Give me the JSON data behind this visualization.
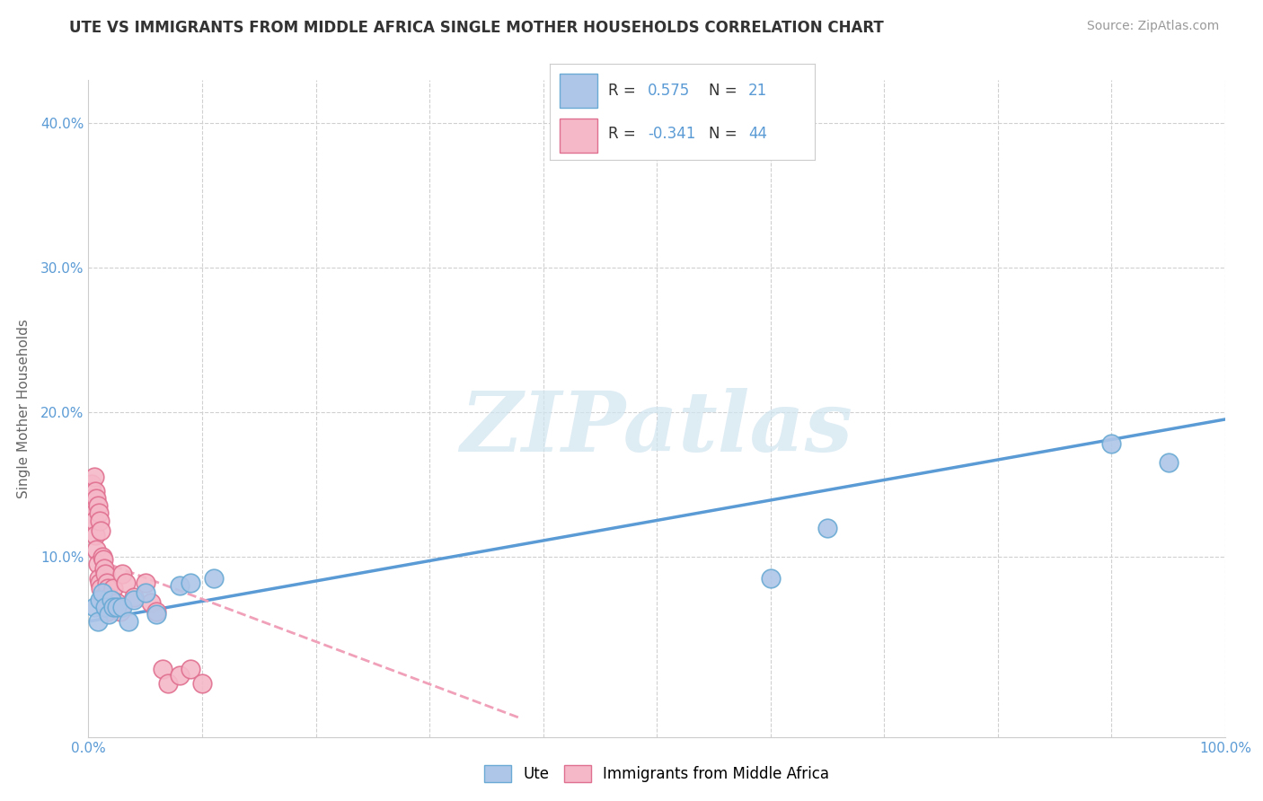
{
  "title": "UTE VS IMMIGRANTS FROM MIDDLE AFRICA SINGLE MOTHER HOUSEHOLDS CORRELATION CHART",
  "source": "Source: ZipAtlas.com",
  "ylabel": "Single Mother Households",
  "xlim": [
    0,
    1.0
  ],
  "ylim": [
    -0.025,
    0.43
  ],
  "blue_color": "#aec6e8",
  "blue_edge_color": "#6aaad4",
  "pink_color": "#f5b8c8",
  "pink_edge_color": "#e07090",
  "blue_line_color": "#5b9bd5",
  "pink_line_color": "#f0a0b8",
  "watermark_text": "ZIPatlas",
  "watermark_color": "#d0e4f0",
  "legend_r1": "0.575",
  "legend_n1": "21",
  "legend_r2": "-0.341",
  "legend_n2": "44",
  "blue_points_x": [
    0.005,
    0.008,
    0.01,
    0.012,
    0.015,
    0.018,
    0.02,
    0.022,
    0.025,
    0.03,
    0.035,
    0.04,
    0.05,
    0.06,
    0.08,
    0.09,
    0.11,
    0.6,
    0.65,
    0.9,
    0.95
  ],
  "blue_points_y": [
    0.065,
    0.055,
    0.07,
    0.075,
    0.065,
    0.06,
    0.07,
    0.065,
    0.065,
    0.065,
    0.055,
    0.07,
    0.075,
    0.06,
    0.08,
    0.082,
    0.085,
    0.085,
    0.12,
    0.178,
    0.165
  ],
  "pink_points_x": [
    0.002,
    0.003,
    0.003,
    0.004,
    0.005,
    0.005,
    0.006,
    0.006,
    0.007,
    0.007,
    0.008,
    0.008,
    0.009,
    0.009,
    0.01,
    0.01,
    0.011,
    0.011,
    0.012,
    0.012,
    0.013,
    0.013,
    0.014,
    0.015,
    0.015,
    0.016,
    0.016,
    0.017,
    0.018,
    0.02,
    0.022,
    0.025,
    0.028,
    0.03,
    0.033,
    0.04,
    0.05,
    0.055,
    0.06,
    0.065,
    0.07,
    0.08,
    0.09,
    0.1
  ],
  "pink_points_y": [
    0.135,
    0.15,
    0.145,
    0.14,
    0.155,
    0.125,
    0.145,
    0.115,
    0.14,
    0.105,
    0.135,
    0.095,
    0.13,
    0.085,
    0.125,
    0.082,
    0.118,
    0.078,
    0.1,
    0.072,
    0.098,
    0.072,
    0.092,
    0.088,
    0.068,
    0.082,
    0.062,
    0.078,
    0.072,
    0.068,
    0.078,
    0.068,
    0.062,
    0.088,
    0.082,
    0.072,
    0.082,
    0.068,
    0.062,
    0.022,
    0.012,
    0.018,
    0.022,
    0.012
  ],
  "blue_line_x": [
    0.0,
    1.0
  ],
  "blue_line_y": [
    0.055,
    0.195
  ],
  "pink_line_x": [
    0.0,
    0.38
  ],
  "pink_line_y": [
    0.1,
    -0.012
  ],
  "background_color": "#ffffff",
  "grid_color": "#d0d0d0",
  "text_color": "#333333",
  "axis_color": "#5b9bd5",
  "legend_text_color": "#5b9bd5",
  "legend_label_color": "#444444"
}
